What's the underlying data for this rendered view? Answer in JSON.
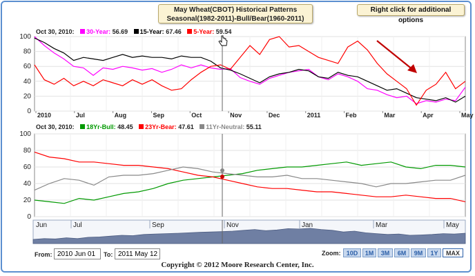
{
  "header": {
    "title_line1": "May Wheat(CBOT) Historical Patterns",
    "title_line2": "Seasonal(1982-2011)-Bull/Bear(1960-2011)",
    "right_click_hint": "Right click for additional options"
  },
  "top_legend": {
    "date": "Oct 30, 2010:",
    "items": [
      {
        "label": "30-Year:",
        "value": "56.69",
        "color": "#ff00ff"
      },
      {
        "label": "15-Year:",
        "value": "67.46",
        "color": "#000000"
      },
      {
        "label": "5-Year:",
        "value": "59.54",
        "color": "#ff0000"
      }
    ]
  },
  "bottom_legend": {
    "date": "Oct 30, 2010:",
    "items": [
      {
        "label": "18Yr-Bull:",
        "value": "48.45",
        "color": "#009900"
      },
      {
        "label": "23Yr-Bear:",
        "value": "47.61",
        "color": "#ff0000"
      },
      {
        "label": "11Yr-Neutral:",
        "value": "55.11",
        "color": "#888888"
      }
    ]
  },
  "navigator": {
    "labels": [
      "Jun",
      "Jul",
      "Sep",
      "Nov",
      "Jan",
      "Mar",
      "May"
    ]
  },
  "controls": {
    "from_label": "From:",
    "from_value": "2010 Jun 01",
    "to_label": "To:",
    "to_value": "2011 May 12",
    "zoom_label": "Zoom:",
    "zoom_buttons": [
      "10D",
      "1M",
      "3M",
      "6M",
      "9M",
      "1Y",
      "MAX"
    ],
    "zoom_active": "MAX"
  },
  "copyright": "Copyright © 2012 Moore Research Center, Inc.",
  "chart_data": [
    {
      "type": "line",
      "x_labels": [
        "2010",
        "Jul",
        "Aug",
        "Sep",
        "Oct",
        "Nov",
        "Dec",
        "2011",
        "Feb",
        "Mar",
        "Apr",
        "May"
      ],
      "ylim": [
        0,
        100
      ],
      "y_ticks": [
        0,
        20,
        40,
        60,
        80,
        100
      ],
      "series": [
        {
          "name": "30-Year",
          "color": "#ff00ff",
          "values": [
            100,
            88,
            78,
            70,
            60,
            58,
            48,
            58,
            56,
            60,
            58,
            55,
            57,
            52,
            56,
            62,
            58,
            62,
            58,
            56,
            57,
            45,
            40,
            36,
            44,
            48,
            52,
            54,
            56,
            46,
            42,
            50,
            46,
            40,
            30,
            28,
            22,
            18,
            20,
            10,
            14,
            12,
            16,
            14,
            32
          ]
        },
        {
          "name": "15-Year",
          "color": "#000000",
          "values": [
            98,
            92,
            84,
            78,
            68,
            72,
            70,
            68,
            72,
            76,
            72,
            74,
            72,
            72,
            70,
            74,
            72,
            72,
            67,
            58,
            55,
            50,
            44,
            38,
            46,
            50,
            52,
            56,
            54,
            46,
            44,
            52,
            48,
            46,
            40,
            34,
            28,
            30,
            24,
            18,
            16,
            14,
            18,
            12,
            20
          ]
        },
        {
          "name": "5-Year",
          "color": "#ff0000",
          "values": [
            62,
            42,
            36,
            44,
            34,
            40,
            34,
            42,
            38,
            34,
            42,
            36,
            42,
            34,
            28,
            30,
            42,
            52,
            60,
            62,
            56,
            72,
            88,
            76,
            96,
            100,
            86,
            88,
            80,
            72,
            68,
            64,
            86,
            94,
            82,
            64,
            50,
            40,
            30,
            8,
            28,
            36,
            52,
            30,
            40
          ]
        }
      ]
    },
    {
      "type": "line",
      "ylim": [
        0,
        100
      ],
      "y_ticks": [
        0,
        20,
        40,
        60,
        80,
        100
      ],
      "series": [
        {
          "name": "18Yr-Bull",
          "color": "#009900",
          "values": [
            20,
            18,
            16,
            22,
            20,
            24,
            28,
            30,
            34,
            40,
            44,
            46,
            48,
            50,
            52,
            56,
            58,
            60,
            60,
            62,
            64,
            66,
            62,
            64,
            66,
            60,
            58,
            62,
            62,
            60
          ]
        },
        {
          "name": "23Yr-Bear",
          "color": "#ff0000",
          "values": [
            78,
            72,
            70,
            66,
            66,
            64,
            62,
            62,
            60,
            58,
            54,
            50,
            48,
            44,
            40,
            36,
            34,
            34,
            32,
            30,
            30,
            28,
            26,
            24,
            24,
            26,
            24,
            22,
            22,
            18
          ]
        },
        {
          "name": "11Yr-Neutral",
          "color": "#888888",
          "values": [
            32,
            40,
            46,
            44,
            38,
            48,
            50,
            50,
            52,
            56,
            60,
            58,
            54,
            52,
            50,
            48,
            48,
            50,
            46,
            46,
            44,
            42,
            40,
            36,
            40,
            40,
            42,
            44,
            44,
            50
          ]
        }
      ]
    }
  ]
}
